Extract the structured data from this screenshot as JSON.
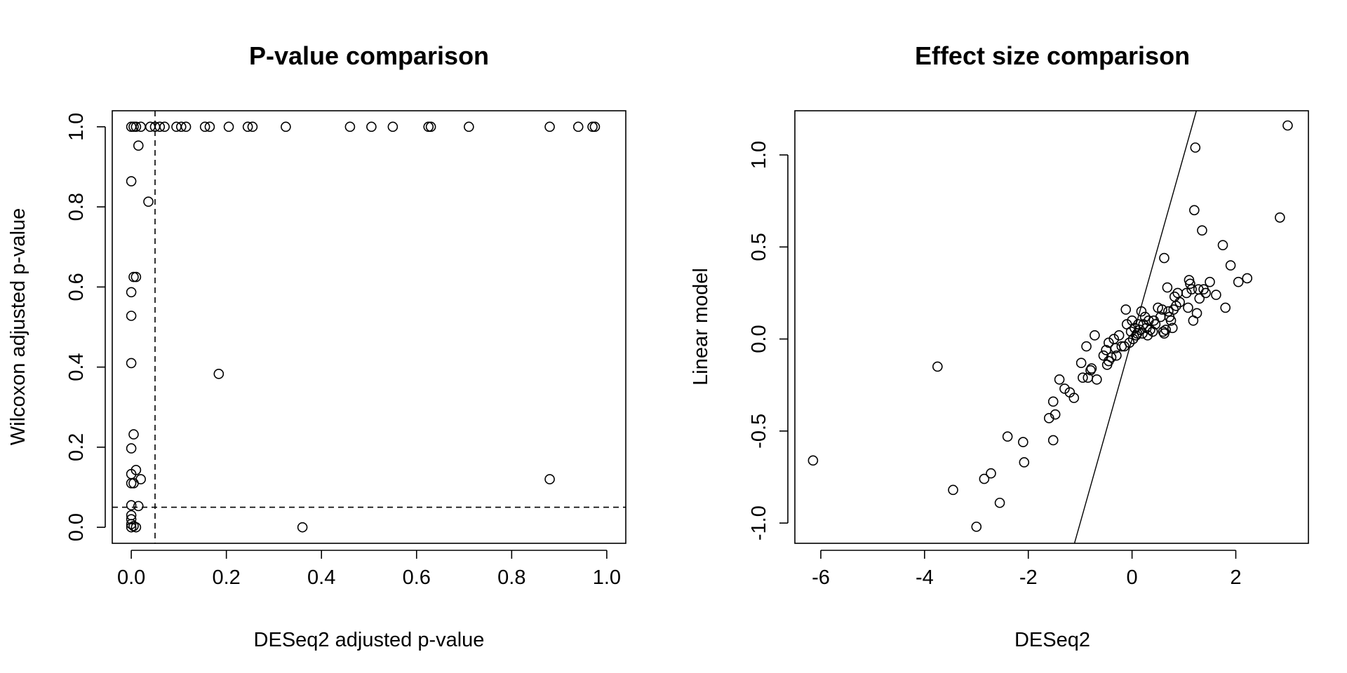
{
  "chart_data": [
    {
      "type": "scatter",
      "title": "P-value comparison",
      "xlabel": "DESeq2 adjusted p-value",
      "ylabel": "Wilcoxon adjusted p-value",
      "xlim": [
        -0.04,
        1.04
      ],
      "ylim": [
        -0.04,
        1.04
      ],
      "xticks": [
        0.0,
        0.2,
        0.4,
        0.6,
        0.8,
        1.0
      ],
      "xtick_labels": [
        "0.0",
        "0.2",
        "0.4",
        "0.6",
        "0.8",
        "1.0"
      ],
      "yticks": [
        0.0,
        0.2,
        0.4,
        0.6,
        0.8,
        1.0
      ],
      "ytick_labels": [
        "0.0",
        "0.2",
        "0.4",
        "0.6",
        "0.8",
        "1.0"
      ],
      "grid": false,
      "reference_lines": [
        {
          "orientation": "vertical",
          "value": 0.05,
          "style": "dashed"
        },
        {
          "orientation": "horizontal",
          "value": 0.05,
          "style": "dashed"
        }
      ],
      "points": [
        [
          0.0,
          1.0
        ],
        [
          0.005,
          1.0
        ],
        [
          0.01,
          1.0
        ],
        [
          0.02,
          1.0
        ],
        [
          0.04,
          1.0
        ],
        [
          0.05,
          1.0
        ],
        [
          0.06,
          1.0
        ],
        [
          0.07,
          1.0
        ],
        [
          0.095,
          1.0
        ],
        [
          0.105,
          1.0
        ],
        [
          0.115,
          1.0
        ],
        [
          0.155,
          1.0
        ],
        [
          0.165,
          1.0
        ],
        [
          0.205,
          1.0
        ],
        [
          0.245,
          1.0
        ],
        [
          0.255,
          1.0
        ],
        [
          0.325,
          1.0
        ],
        [
          0.46,
          1.0
        ],
        [
          0.505,
          1.0
        ],
        [
          0.55,
          1.0
        ],
        [
          0.625,
          1.0
        ],
        [
          0.63,
          1.0
        ],
        [
          0.71,
          1.0
        ],
        [
          0.88,
          1.0
        ],
        [
          0.94,
          1.0
        ],
        [
          0.97,
          1.0
        ],
        [
          0.975,
          1.0
        ],
        [
          0.015,
          0.953
        ],
        [
          0.0,
          0.864
        ],
        [
          0.036,
          0.813
        ],
        [
          0.005,
          0.625
        ],
        [
          0.01,
          0.625
        ],
        [
          0.0,
          0.587
        ],
        [
          0.0,
          0.528
        ],
        [
          0.0,
          0.41
        ],
        [
          0.184,
          0.383
        ],
        [
          0.005,
          0.232
        ],
        [
          0.0,
          0.197
        ],
        [
          0.01,
          0.143
        ],
        [
          0.0,
          0.133
        ],
        [
          0.02,
          0.12
        ],
        [
          0.0,
          0.11
        ],
        [
          0.005,
          0.11
        ],
        [
          0.88,
          0.12
        ],
        [
          0.015,
          0.053
        ],
        [
          0.0,
          0.055
        ],
        [
          0.0,
          0.03
        ],
        [
          0.0,
          0.02
        ],
        [
          0.0,
          0.008
        ],
        [
          0.005,
          0.003
        ],
        [
          0.0,
          0.0
        ],
        [
          0.01,
          0.0
        ],
        [
          0.36,
          0.0
        ]
      ]
    },
    {
      "type": "scatter",
      "title": "Effect size comparison",
      "xlabel": "DESeq2",
      "ylabel": "Linear model",
      "xlim": [
        -6.5,
        3.4
      ],
      "ylim": [
        -1.11,
        1.24
      ],
      "xticks": [
        -6,
        -4,
        -2,
        0,
        2
      ],
      "xtick_labels": [
        "-6",
        "-4",
        "-2",
        "0",
        "2"
      ],
      "yticks": [
        -1.0,
        -0.5,
        0.0,
        0.5,
        1.0
      ],
      "ytick_labels": [
        "-1.0",
        "-0.5",
        "0.0",
        "0.5",
        "1.0"
      ],
      "grid": false,
      "reference_lines": [
        {
          "orientation": "abline",
          "intercept": 0,
          "slope": 1,
          "style": "solid"
        }
      ],
      "points": [
        [
          -6.15,
          -0.66
        ],
        [
          -3.75,
          -0.15
        ],
        [
          -3.45,
          -0.82
        ],
        [
          -3.0,
          -1.02
        ],
        [
          -2.85,
          -0.76
        ],
        [
          -2.72,
          -0.73
        ],
        [
          -2.55,
          -0.89
        ],
        [
          -2.4,
          -0.53
        ],
        [
          -2.1,
          -0.56
        ],
        [
          -2.08,
          -0.67
        ],
        [
          -1.6,
          -0.43
        ],
        [
          -1.52,
          -0.55
        ],
        [
          -1.52,
          -0.34
        ],
        [
          -1.48,
          -0.41
        ],
        [
          -1.4,
          -0.22
        ],
        [
          -1.3,
          -0.27
        ],
        [
          -1.2,
          -0.29
        ],
        [
          -1.12,
          -0.32
        ],
        [
          -0.98,
          -0.13
        ],
        [
          -0.95,
          -0.21
        ],
        [
          -0.88,
          -0.04
        ],
        [
          -0.85,
          -0.21
        ],
        [
          -0.8,
          -0.17
        ],
        [
          -0.78,
          -0.16
        ],
        [
          -0.72,
          0.02
        ],
        [
          -0.68,
          -0.22
        ],
        [
          -0.55,
          -0.09
        ],
        [
          -0.5,
          -0.06
        ],
        [
          -0.48,
          -0.14
        ],
        [
          -0.45,
          -0.12
        ],
        [
          -0.45,
          -0.02
        ],
        [
          -0.4,
          -0.1
        ],
        [
          -0.35,
          0.0
        ],
        [
          -0.32,
          -0.05
        ],
        [
          -0.3,
          -0.09
        ],
        [
          -0.25,
          0.02
        ],
        [
          -0.2,
          -0.04
        ],
        [
          -0.15,
          -0.04
        ],
        [
          -0.12,
          0.16
        ],
        [
          -0.1,
          0.08
        ],
        [
          -0.05,
          -0.02
        ],
        [
          -0.02,
          0.04
        ],
        [
          0.0,
          0.1
        ],
        [
          0.02,
          0.0
        ],
        [
          0.05,
          0.06
        ],
        [
          0.08,
          0.02
        ],
        [
          0.1,
          0.03
        ],
        [
          0.12,
          0.08
        ],
        [
          0.15,
          0.05
        ],
        [
          0.18,
          0.15
        ],
        [
          0.2,
          0.03
        ],
        [
          0.22,
          0.08
        ],
        [
          0.25,
          0.12
        ],
        [
          0.28,
          0.06
        ],
        [
          0.3,
          0.02
        ],
        [
          0.32,
          0.1
        ],
        [
          0.35,
          0.05
        ],
        [
          0.4,
          0.04
        ],
        [
          0.42,
          0.1
        ],
        [
          0.45,
          0.08
        ],
        [
          0.5,
          0.17
        ],
        [
          0.55,
          0.12
        ],
        [
          0.58,
          0.16
        ],
        [
          0.6,
          0.04
        ],
        [
          0.62,
          0.03
        ],
        [
          0.62,
          0.44
        ],
        [
          0.65,
          0.05
        ],
        [
          0.68,
          0.28
        ],
        [
          0.7,
          0.15
        ],
        [
          0.72,
          0.12
        ],
        [
          0.75,
          0.1
        ],
        [
          0.78,
          0.06
        ],
        [
          0.8,
          0.16
        ],
        [
          0.82,
          0.23
        ],
        [
          0.85,
          0.18
        ],
        [
          0.88,
          0.25
        ],
        [
          0.92,
          0.2
        ],
        [
          1.05,
          0.25
        ],
        [
          1.08,
          0.17
        ],
        [
          1.1,
          0.32
        ],
        [
          1.12,
          0.3
        ],
        [
          1.15,
          0.27
        ],
        [
          1.18,
          0.1
        ],
        [
          1.2,
          0.7
        ],
        [
          1.22,
          1.04
        ],
        [
          1.25,
          0.14
        ],
        [
          1.28,
          0.27
        ],
        [
          1.3,
          0.22
        ],
        [
          1.35,
          0.59
        ],
        [
          1.38,
          0.27
        ],
        [
          1.42,
          0.25
        ],
        [
          1.5,
          0.31
        ],
        [
          1.62,
          0.24
        ],
        [
          1.75,
          0.51
        ],
        [
          1.8,
          0.17
        ],
        [
          1.9,
          0.4
        ],
        [
          2.05,
          0.31
        ],
        [
          2.22,
          0.33
        ],
        [
          2.85,
          0.66
        ],
        [
          3.0,
          1.16
        ]
      ]
    }
  ]
}
